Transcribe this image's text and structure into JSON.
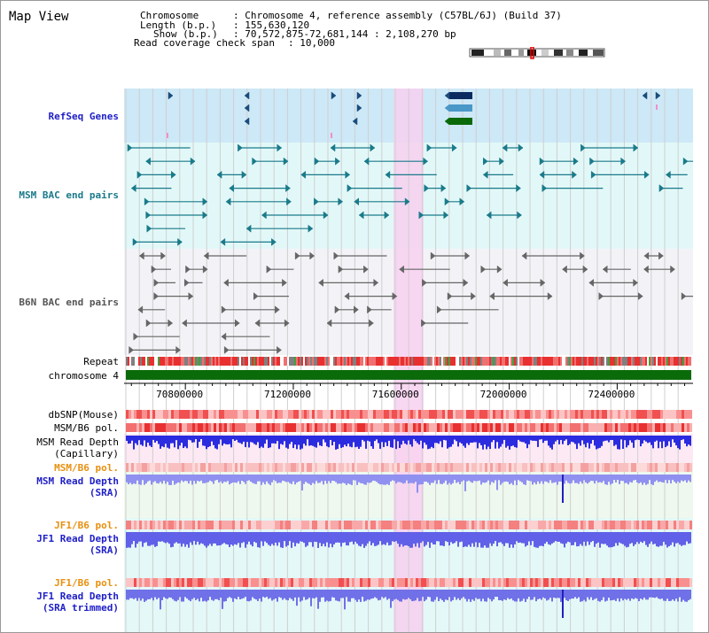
{
  "header": {
    "view_title": "Map View",
    "chromosome_key": "Chromosome",
    "chromosome_value": ": Chromosome 4, reference assembly (C57BL/6J) (Build 37)",
    "length_key": "Length (b.p.)",
    "length_value": ": 155,630,120",
    "show_key": "Show (b.p.)",
    "show_value": ": 70,572,875-72,681,144 : 2,108,270 bp",
    "coverage_key": "Read coverage check span",
    "coverage_value": ": 10,000"
  },
  "tracks": {
    "refseq": {
      "label": "RefSeq Genes",
      "color": "#1e1ec8"
    },
    "msm_bac": {
      "label": "MSM BAC end pairs",
      "color": "#1a7a8a"
    },
    "b6n_bac": {
      "label": "B6N BAC end pairs",
      "color": "#555555"
    },
    "repeat": {
      "label": "Repeat"
    },
    "chromosome": {
      "label": "chromosome 4"
    },
    "dbsnp": {
      "label": "dbSNP(Mouse)"
    },
    "msm_b6_pol": {
      "label": "MSM/B6 pol."
    },
    "msm_read_depth_cap": {
      "label1": "MSM Read Depth",
      "label2": "(Capillary)"
    },
    "msm_b6_pol_sra": {
      "label": "MSM/B6 pol."
    },
    "msm_read_depth_sra": {
      "label1": "MSM Read Depth",
      "label2": "(SRA)"
    },
    "jf1_b6_pol": {
      "label": "JF1/B6 pol."
    },
    "jf1_read_depth": {
      "label1": "JF1 Read Depth",
      "label2": "(SRA)"
    },
    "jf1_b6_pol2": {
      "label": "JF1/B6 pol."
    },
    "jf1_read_depth_trim": {
      "label1": "JF1 Read Depth",
      "label2": "(SRA trimmed)"
    }
  },
  "axis": {
    "ticks": [
      "70800000",
      "71200000",
      "71600000",
      "72000000",
      "72400000"
    ],
    "range_start": 70572875,
    "range_end": 72681144
  },
  "colors": {
    "highlight": "#f7d0f0",
    "refseq_bg": "#cde8f7",
    "msm_bg": "#e0f7f7",
    "b6n_bg": "#f4f4f8",
    "chromosome_bar": "#0b6b0b",
    "depth_blue": "#3030e8",
    "depth_light": "#8080f0",
    "pol_red": "#f05050",
    "orange_label": "#e89010"
  }
}
